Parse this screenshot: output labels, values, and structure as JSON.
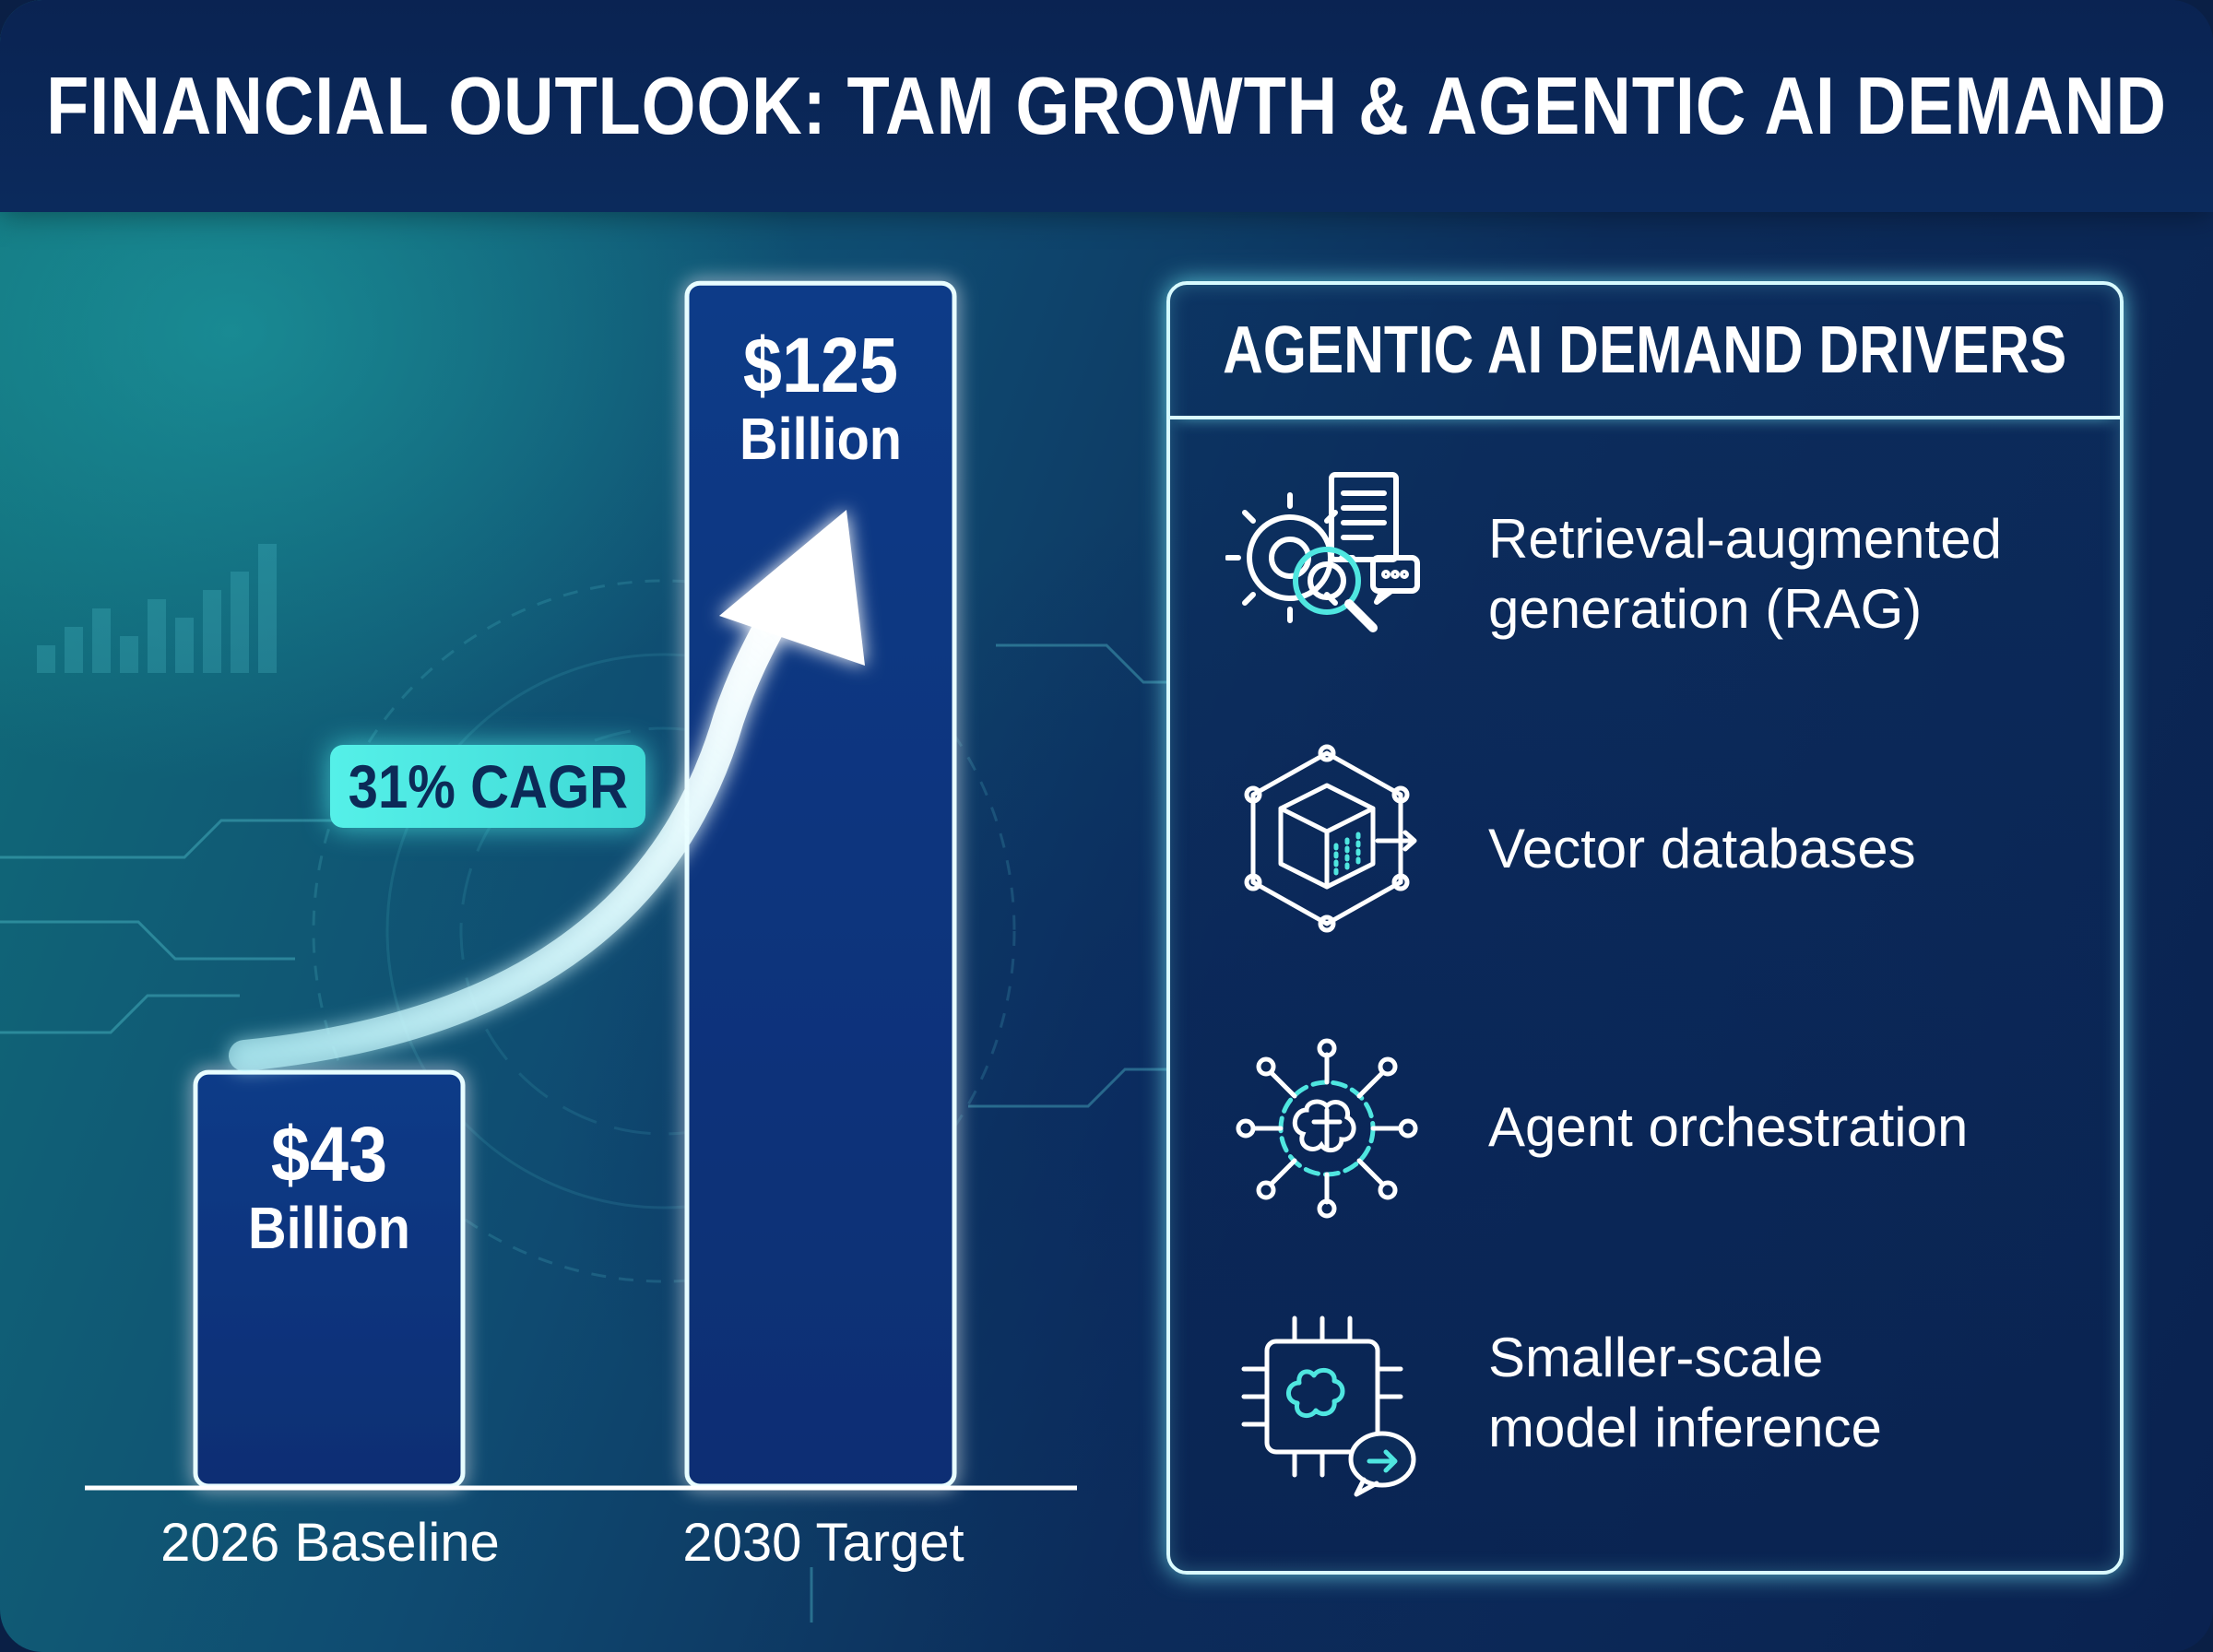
{
  "title": "FINANCIAL OUTLOOK: TAM GROWTH & AGENTIC AI DEMAND",
  "chart_data": {
    "type": "bar",
    "title": "",
    "categories": [
      "2026 Baseline",
      "2030 Target"
    ],
    "values": [
      43,
      125
    ],
    "value_labels": [
      "$43",
      "$125"
    ],
    "unit_label": "Billion",
    "xlabel": "",
    "ylabel": "",
    "annotation": "31% CAGR",
    "ylim": [
      0,
      130
    ],
    "grid": false,
    "legend": "none",
    "colors": {
      "bar": "#0d3a85",
      "glow": "#6ff3f0",
      "accent": "#4fe6e0"
    }
  },
  "drivers_panel": {
    "title": "AGENTIC AI DEMAND DRIVERS",
    "items": [
      {
        "icon": "rag-document-search-icon",
        "label": "Retrieval-augmented\ngeneration (RAG)"
      },
      {
        "icon": "vector-database-cube-icon",
        "label": "Vector databases"
      },
      {
        "icon": "agent-orchestration-brain-icon",
        "label": "Agent orchestration"
      },
      {
        "icon": "chip-brain-inference-icon",
        "label": "Smaller-scale\nmodel inference"
      }
    ]
  }
}
